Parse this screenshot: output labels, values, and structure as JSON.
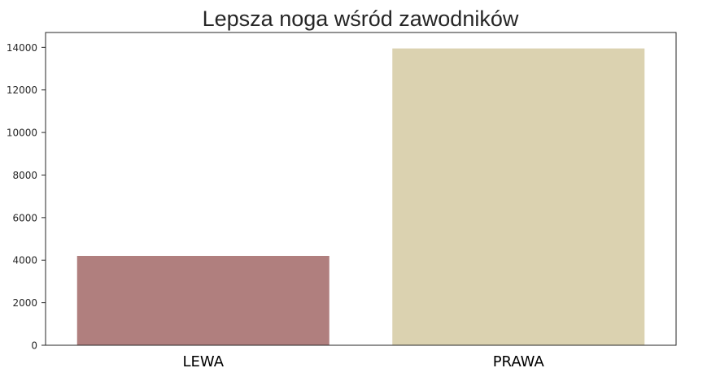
{
  "chart_data": {
    "type": "bar",
    "title": "Lepsza noga wśród zawodników",
    "xlabel": "",
    "ylabel": "",
    "categories": [
      "LEWA",
      "PRAWA"
    ],
    "values": [
      4200,
      13950
    ],
    "colors": [
      "#b07f7e",
      "#dbd2b0"
    ],
    "ylim": [
      0,
      14700
    ],
    "yticks": [
      0,
      2000,
      4000,
      6000,
      8000,
      10000,
      12000,
      14000
    ],
    "ytick_labels": [
      "0",
      "2000",
      "4000",
      "6000",
      "8000",
      "10000",
      "12000",
      "14000"
    ],
    "grid": false,
    "legend": "none"
  }
}
